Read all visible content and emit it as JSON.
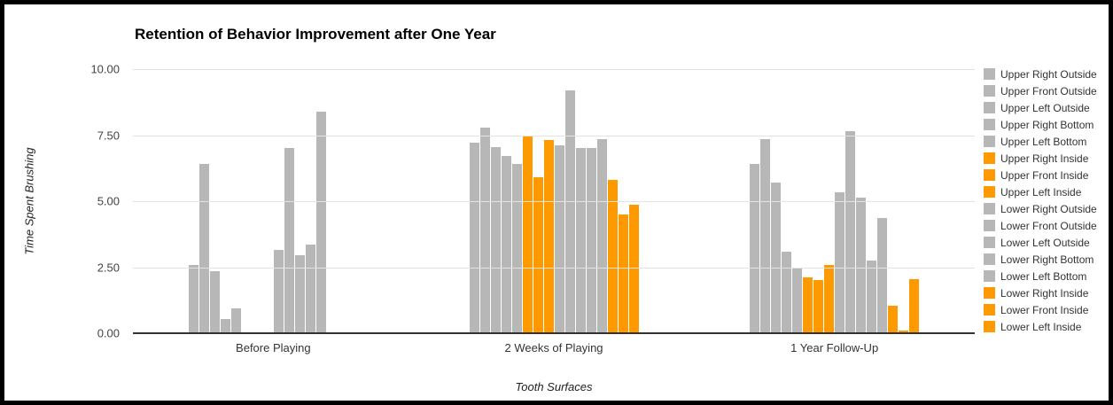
{
  "chart_data": {
    "type": "bar",
    "title": "Retention of Behavior Improvement after One Year",
    "xlabel": "Tooth Surfaces",
    "ylabel": "Time Spent Brushing",
    "categories": [
      "Before Playing",
      "2 Weeks of Playing",
      "1 Year Follow-Up"
    ],
    "y_ticks": [
      "10.00",
      "7.50",
      "5.00",
      "2.50",
      "0.00"
    ],
    "ylim": [
      0,
      10
    ],
    "grid": true,
    "legend_position": "right",
    "colors": {
      "outside_bottom": "#b7b7b7",
      "inside": "#ff9900"
    },
    "series": [
      {
        "name": "Upper Right Outside",
        "color": "#b7b7b7",
        "values": [
          2.6,
          7.2,
          6.4
        ]
      },
      {
        "name": "Upper Front Outside",
        "color": "#b7b7b7",
        "values": [
          6.4,
          7.8,
          7.35
        ]
      },
      {
        "name": "Upper Left Outside",
        "color": "#b7b7b7",
        "values": [
          2.35,
          7.05,
          5.7
        ]
      },
      {
        "name": "Upper Right Bottom",
        "color": "#b7b7b7",
        "values": [
          0.55,
          6.7,
          3.1
        ]
      },
      {
        "name": "Upper Left Bottom",
        "color": "#b7b7b7",
        "values": [
          0.95,
          6.4,
          2.45
        ]
      },
      {
        "name": "Upper Right Inside",
        "color": "#ff9900",
        "values": [
          0,
          7.5,
          2.1
        ]
      },
      {
        "name": "Upper Front Inside",
        "color": "#ff9900",
        "values": [
          0,
          5.9,
          2.0
        ]
      },
      {
        "name": "Upper Left Inside",
        "color": "#ff9900",
        "values": [
          0,
          7.3,
          2.6
        ]
      },
      {
        "name": "Lower Right Outside",
        "color": "#b7b7b7",
        "values": [
          3.15,
          7.1,
          5.35
        ]
      },
      {
        "name": "Lower Front Outside",
        "color": "#b7b7b7",
        "values": [
          7.0,
          9.2,
          7.65
        ]
      },
      {
        "name": "Lower Left Outside",
        "color": "#b7b7b7",
        "values": [
          2.95,
          7.0,
          5.15
        ]
      },
      {
        "name": "Lower Right Bottom",
        "color": "#b7b7b7",
        "values": [
          3.35,
          7.0,
          2.75
        ]
      },
      {
        "name": "Lower Left Bottom",
        "color": "#b7b7b7",
        "values": [
          8.4,
          7.35,
          4.35
        ]
      },
      {
        "name": "Lower Right Inside",
        "color": "#ff9900",
        "values": [
          0,
          5.8,
          1.05
        ]
      },
      {
        "name": "Lower Front Inside",
        "color": "#ff9900",
        "values": [
          0,
          4.5,
          0.1
        ]
      },
      {
        "name": "Lower Left Inside",
        "color": "#ff9900",
        "values": [
          0,
          4.85,
          2.05
        ]
      }
    ]
  }
}
